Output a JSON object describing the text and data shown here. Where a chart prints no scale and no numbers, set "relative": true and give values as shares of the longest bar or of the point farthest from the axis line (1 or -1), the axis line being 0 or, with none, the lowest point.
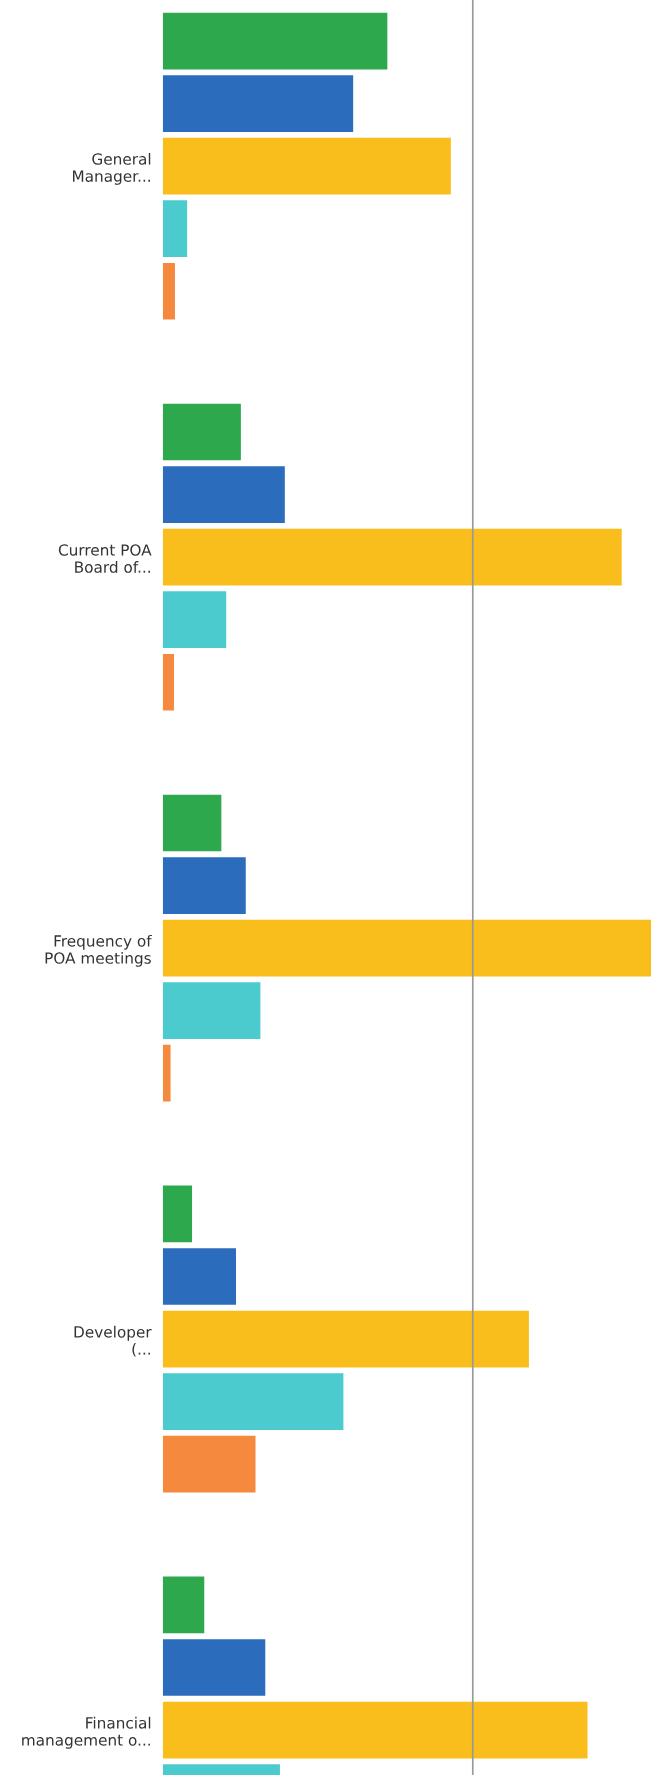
{
  "chart_data": {
    "type": "bar",
    "orientation": "horizontal",
    "relative": true,
    "categories": [
      "General\nManager...",
      "Current POA\nBoard of...",
      "Frequency of\nPOA meetings",
      "Developer\n(...",
      "Financial\nmanagement o..."
    ],
    "series": [
      {
        "color": "#2ea84d",
        "values": [
          0.46,
          0.16,
          0.12,
          0.06,
          0.085
        ]
      },
      {
        "color": "#2b6cbc",
        "values": [
          0.39,
          0.25,
          0.17,
          0.15,
          0.21
        ]
      },
      {
        "color": "#f9bd1c",
        "values": [
          0.59,
          0.94,
          1,
          0.75,
          0.87
        ]
      },
      {
        "color": "#4ccbcf",
        "values": [
          0.05,
          0.13,
          0.2,
          0.37,
          0.24
        ]
      },
      {
        "color": "#f5893e",
        "values": [
          0.025,
          0.023,
          0.016,
          0.19,
          null
        ]
      }
    ],
    "ref_lines": [
      {
        "axis": "x",
        "value": 0.635,
        "color": "#999999"
      }
    ],
    "grid": false,
    "legend": false
  }
}
